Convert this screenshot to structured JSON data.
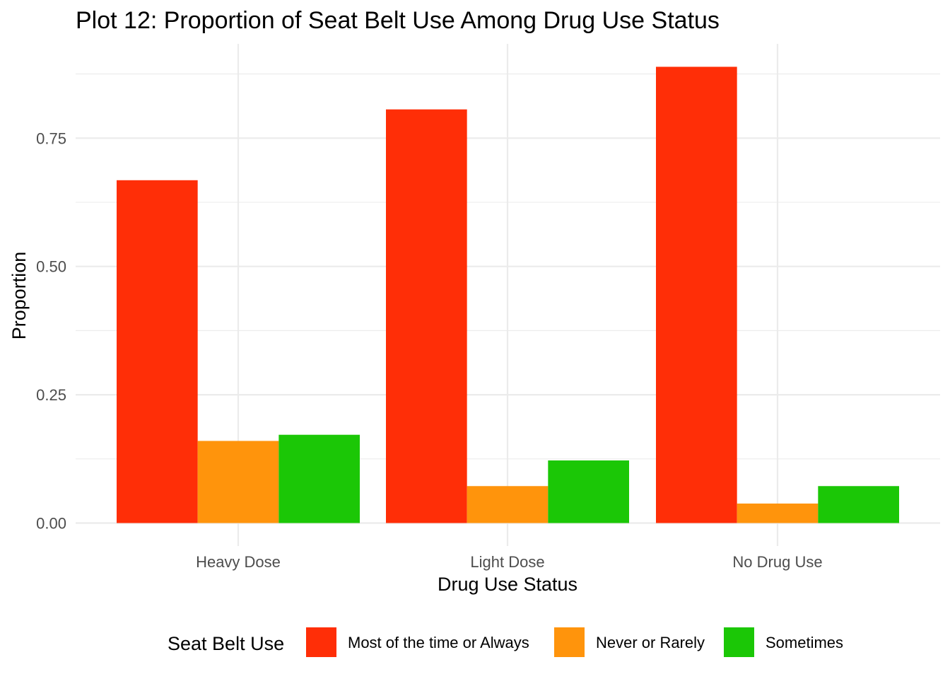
{
  "chart_data": {
    "type": "bar",
    "title": "Plot 12: Proportion of Seat Belt Use Among Drug Use Status",
    "xlabel": "Drug Use Status",
    "ylabel": "Proportion",
    "categories": [
      "Heavy Dose",
      "Light Dose",
      "No Drug Use"
    ],
    "series": [
      {
        "name": "Most of the time or Always",
        "color": "#ff2e07",
        "values": [
          0.668,
          0.806,
          0.889
        ]
      },
      {
        "name": "Never or Rarely",
        "color": "#ff940c",
        "values": [
          0.16,
          0.072,
          0.038
        ]
      },
      {
        "name": "Sometimes",
        "color": "#1bc706",
        "values": [
          0.172,
          0.122,
          0.072
        ]
      }
    ],
    "ylim": [
      0,
      0.9
    ],
    "yticks": [
      0,
      0.25,
      0.5,
      0.75
    ],
    "ytick_labels": [
      "0.00",
      "0.25",
      "0.50",
      "0.75"
    ],
    "grid": true,
    "legend": {
      "title": "Seat Belt Use",
      "position": "bottom"
    }
  }
}
